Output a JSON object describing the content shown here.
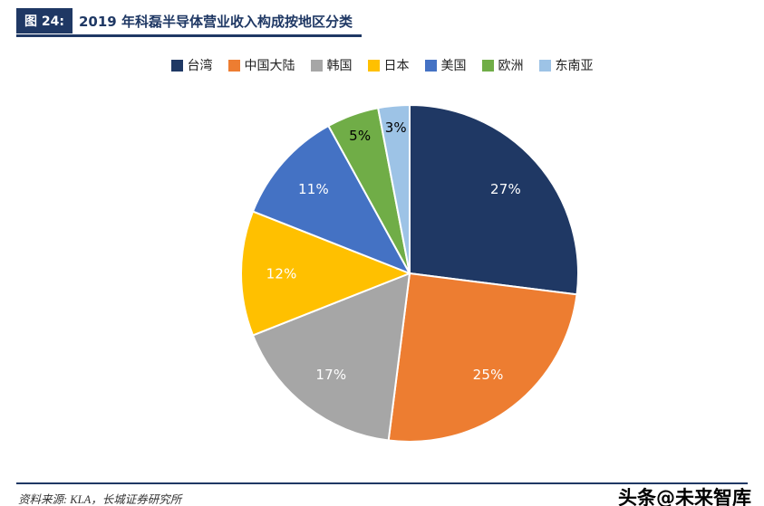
{
  "header": {
    "badge": "图 24:",
    "title": "2019 年科磊半导体营业收入构成按地区分类"
  },
  "chart_data": {
    "type": "pie",
    "title": "2019 年科磊半导体营业收入构成按地区分类",
    "categories": [
      "台湾",
      "中国大陆",
      "韩国",
      "日本",
      "美国",
      "欧洲",
      "东南亚"
    ],
    "values": [
      27,
      25,
      17,
      12,
      11,
      5,
      3
    ],
    "labels": [
      "27%",
      "25%",
      "17%",
      "12%",
      "11%",
      "5%",
      "3%"
    ],
    "colors": [
      "#1F3864",
      "#ED7D31",
      "#A6A6A6",
      "#FFC000",
      "#4472C4",
      "#70AD47",
      "#9DC3E6"
    ],
    "label_text_colors": [
      "#FFFFFF",
      "#FFFFFF",
      "#FFFFFF",
      "#FFFFFF",
      "#FFFFFF",
      "#000000",
      "#000000"
    ],
    "legend_position": "top",
    "start_angle_deg": 0,
    "direction": "clockwise",
    "unit": "percent"
  },
  "footer": {
    "source": "资料来源: KLA，长城证券研究所",
    "watermark": "头条@未来智库"
  },
  "theme": {
    "accent_navy": "#1F3864",
    "background": "#FFFFFF"
  }
}
